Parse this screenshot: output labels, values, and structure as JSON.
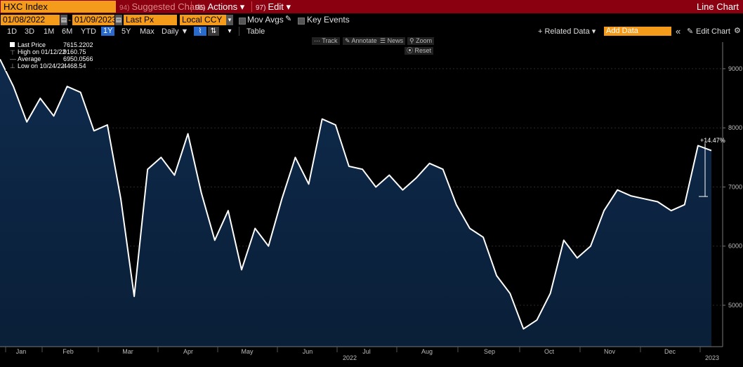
{
  "header": {
    "security": "HXC Index",
    "suggested_num": "94)",
    "suggested_label": "Suggested Charts",
    "actions_num": "96)",
    "actions_label": "Actions ▾",
    "edit_num": "97)",
    "edit_label": "Edit ▾",
    "view_title": "Line Chart"
  },
  "controls": {
    "start_date": "01/08/2022",
    "end_date": "01/09/2023",
    "field": "Last Px",
    "currency": "Local CCY",
    "mov_avgs": "Mov Avgs",
    "key_events": "Key Events"
  },
  "range_bar": {
    "ranges": [
      "1D",
      "3D",
      "1M",
      "6M",
      "YTD",
      "1Y",
      "5Y",
      "Max"
    ],
    "selected": "1Y",
    "frequency": "Daily ▼",
    "table": "Table",
    "related_data": "+ Related Data ▾",
    "add_data_placeholder": "Add Data",
    "edit_chart": "Edit Chart",
    "collapse": "«"
  },
  "chart_tools": {
    "track": "Track",
    "annotate": "Annotate",
    "news": "News",
    "zoom": "Zoom",
    "reset": "Reset"
  },
  "legend": {
    "rows": [
      {
        "name": "Last Price",
        "value": "7615.2202"
      },
      {
        "name": "High on 01/12/22",
        "value": "9160.75"
      },
      {
        "name": "Average",
        "value": "6950.0566"
      },
      {
        "name": "Low on 10/24/22",
        "value": "4468.54"
      }
    ]
  },
  "annotation": {
    "change": "+14.47%"
  },
  "colors": {
    "header": "#8b0010",
    "accent": "#f59b1c",
    "line": "#ffffff",
    "fill": "#0c2340",
    "selected": "#2a6acb"
  },
  "chart_data": {
    "type": "area",
    "x": [
      "2022-01-08",
      "2022-01-15",
      "2022-01-22",
      "2022-01-29",
      "2022-02-05",
      "2022-02-12",
      "2022-02-19",
      "2022-02-26",
      "2022-03-05",
      "2022-03-12",
      "2022-03-19",
      "2022-03-26",
      "2022-04-02",
      "2022-04-09",
      "2022-04-16",
      "2022-04-23",
      "2022-04-30",
      "2022-05-07",
      "2022-05-14",
      "2022-05-21",
      "2022-05-28",
      "2022-06-04",
      "2022-06-11",
      "2022-06-18",
      "2022-06-25",
      "2022-07-02",
      "2022-07-09",
      "2022-07-16",
      "2022-07-23",
      "2022-07-30",
      "2022-08-06",
      "2022-08-13",
      "2022-08-20",
      "2022-08-27",
      "2022-09-03",
      "2022-09-10",
      "2022-09-17",
      "2022-09-24",
      "2022-10-01",
      "2022-10-08",
      "2022-10-15",
      "2022-10-22",
      "2022-10-29",
      "2022-11-05",
      "2022-11-12",
      "2022-11-19",
      "2022-11-26",
      "2022-12-03",
      "2022-12-10",
      "2022-12-17",
      "2022-12-24",
      "2022-12-31",
      "2023-01-07",
      "2023-01-09"
    ],
    "values": [
      9160,
      8700,
      8100,
      8500,
      8200,
      8700,
      8600,
      7950,
      8050,
      6800,
      5150,
      7300,
      7500,
      7200,
      7900,
      6900,
      6100,
      6600,
      5600,
      6300,
      6000,
      6800,
      7500,
      7050,
      8150,
      8050,
      7350,
      7300,
      7000,
      7200,
      6950,
      7150,
      7400,
      7300,
      6700,
      6300,
      6150,
      5500,
      5200,
      4600,
      4750,
      5200,
      6100,
      5800,
      6000,
      6600,
      6950,
      6850,
      6800,
      6750,
      6600,
      6700,
      7700,
      7615
    ],
    "ylim": [
      4300,
      9450
    ],
    "yticks": [
      5000,
      6000,
      7000,
      8000,
      9000
    ],
    "xticks": [
      "Jan",
      "Feb",
      "Mar",
      "Apr",
      "May",
      "Jun",
      "Jul",
      "Aug",
      "Sep",
      "Oct",
      "Nov",
      "Dec",
      "2023"
    ],
    "year_label": "2022",
    "grid": true
  }
}
